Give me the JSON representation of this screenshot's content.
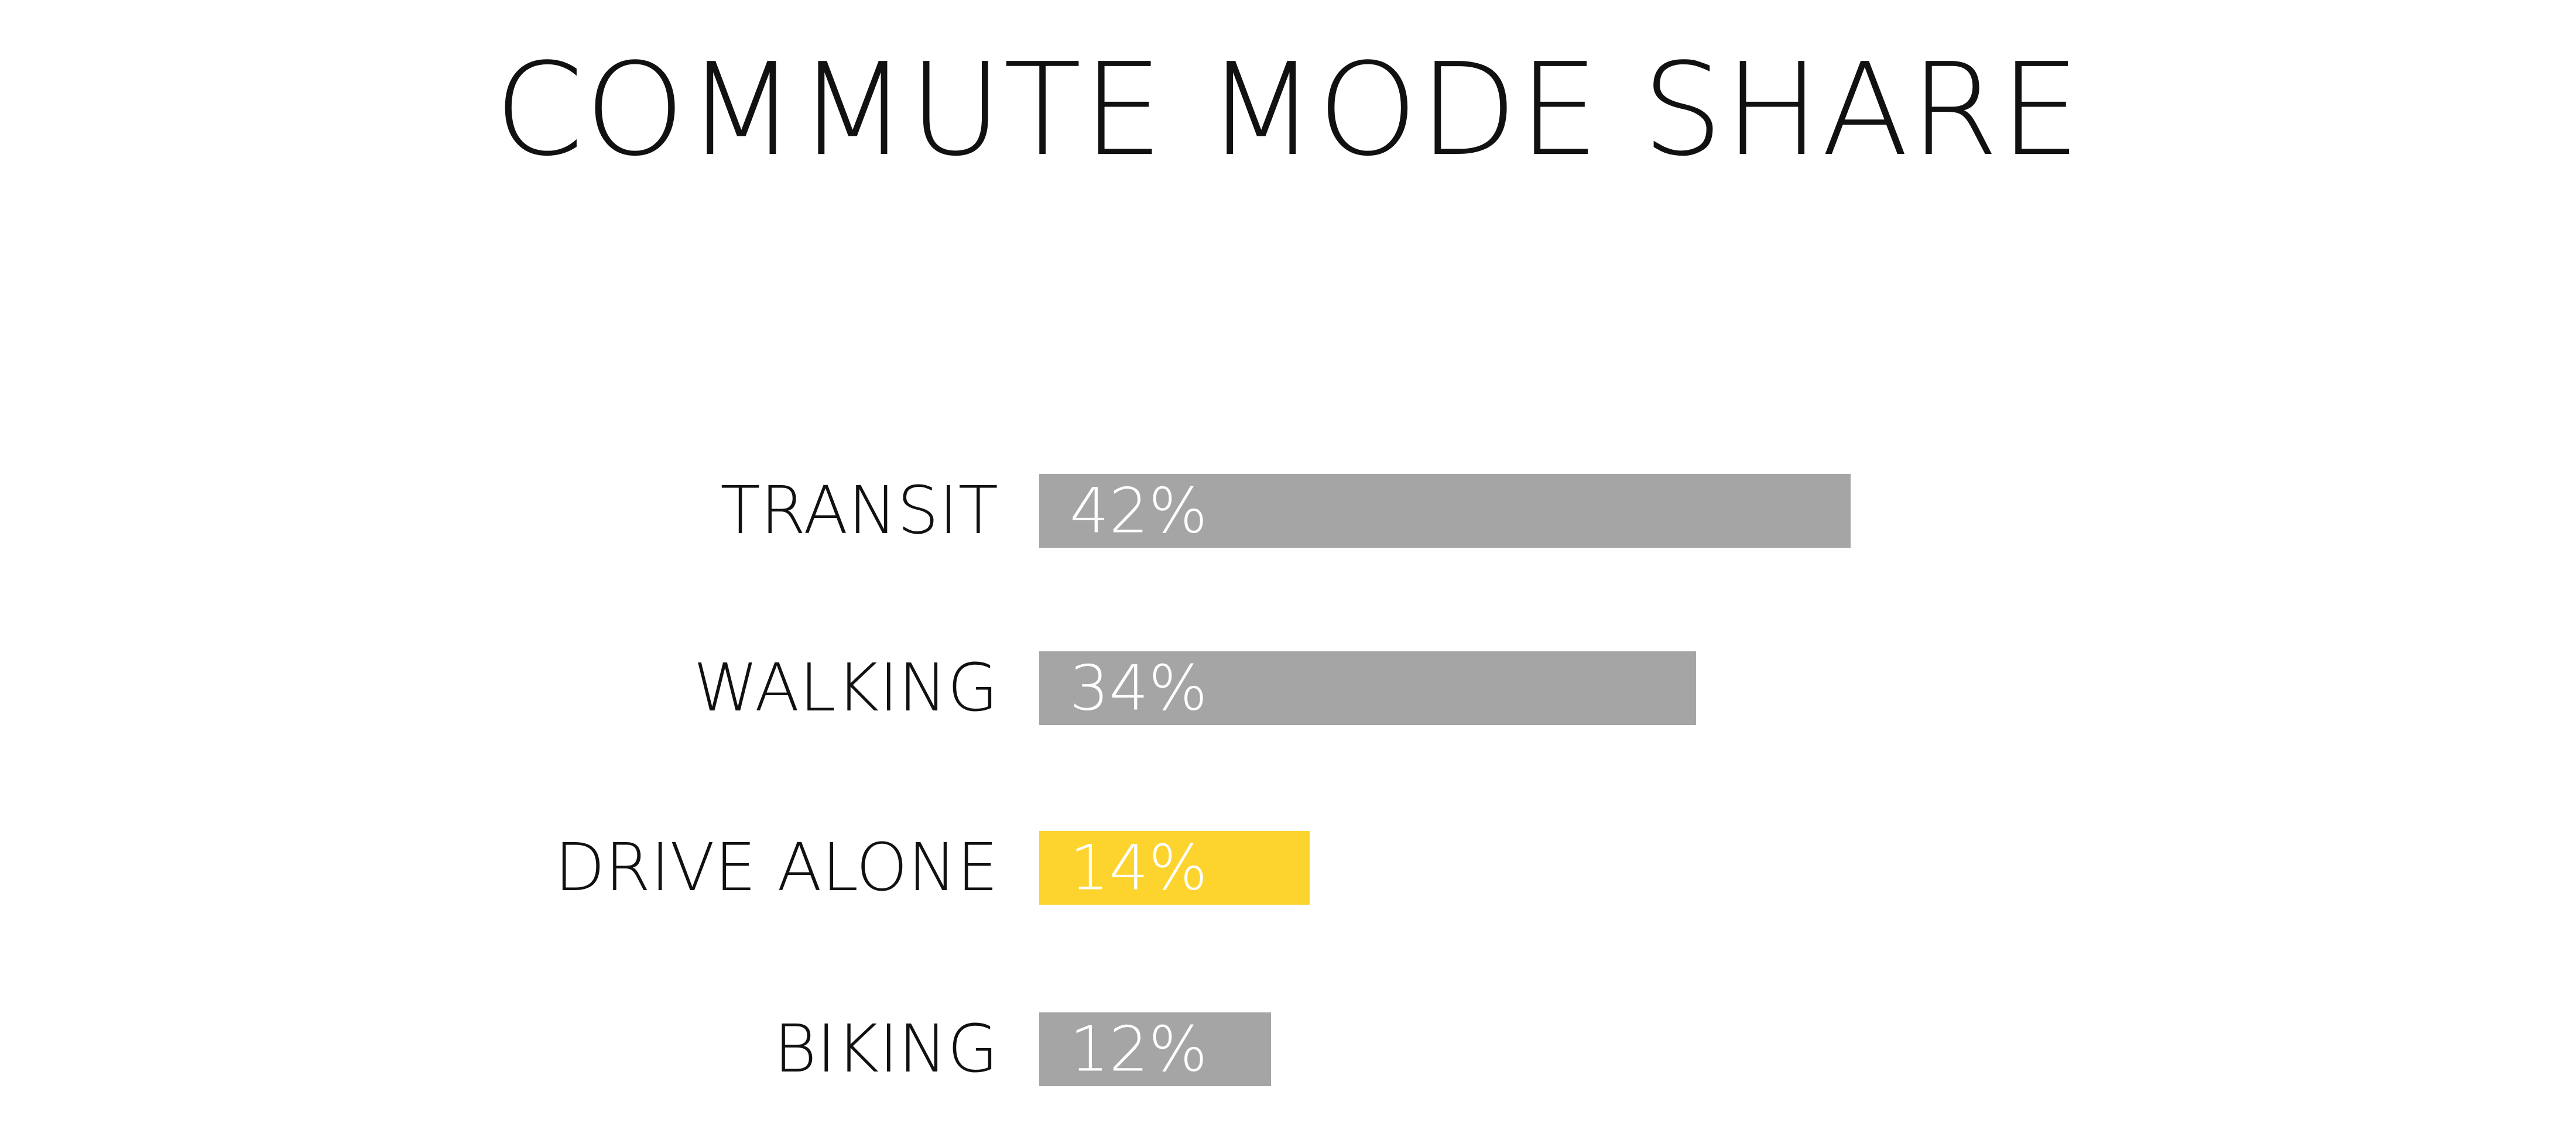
{
  "chart_data": {
    "type": "bar",
    "orientation": "horizontal",
    "title": "COMMUTE MODE SHARE",
    "categories": [
      "TRANSIT",
      "WALKING",
      "DRIVE ALONE",
      "BIKING"
    ],
    "values": [
      42,
      34,
      14,
      12
    ],
    "value_labels": [
      "42%",
      "34%",
      "14%",
      "12%"
    ],
    "unit": "%",
    "highlight": "DRIVE ALONE",
    "xlabel": "",
    "ylabel": "",
    "grid": false,
    "axes_visible": false,
    "legend": "none"
  },
  "colors": {
    "background": "#ffffff",
    "bar_default": "#a5a5a5",
    "bar_highlight": "#fdd42d",
    "value_label_text": "#ffffff",
    "category_text": "#111111",
    "title_text": "#111111"
  }
}
